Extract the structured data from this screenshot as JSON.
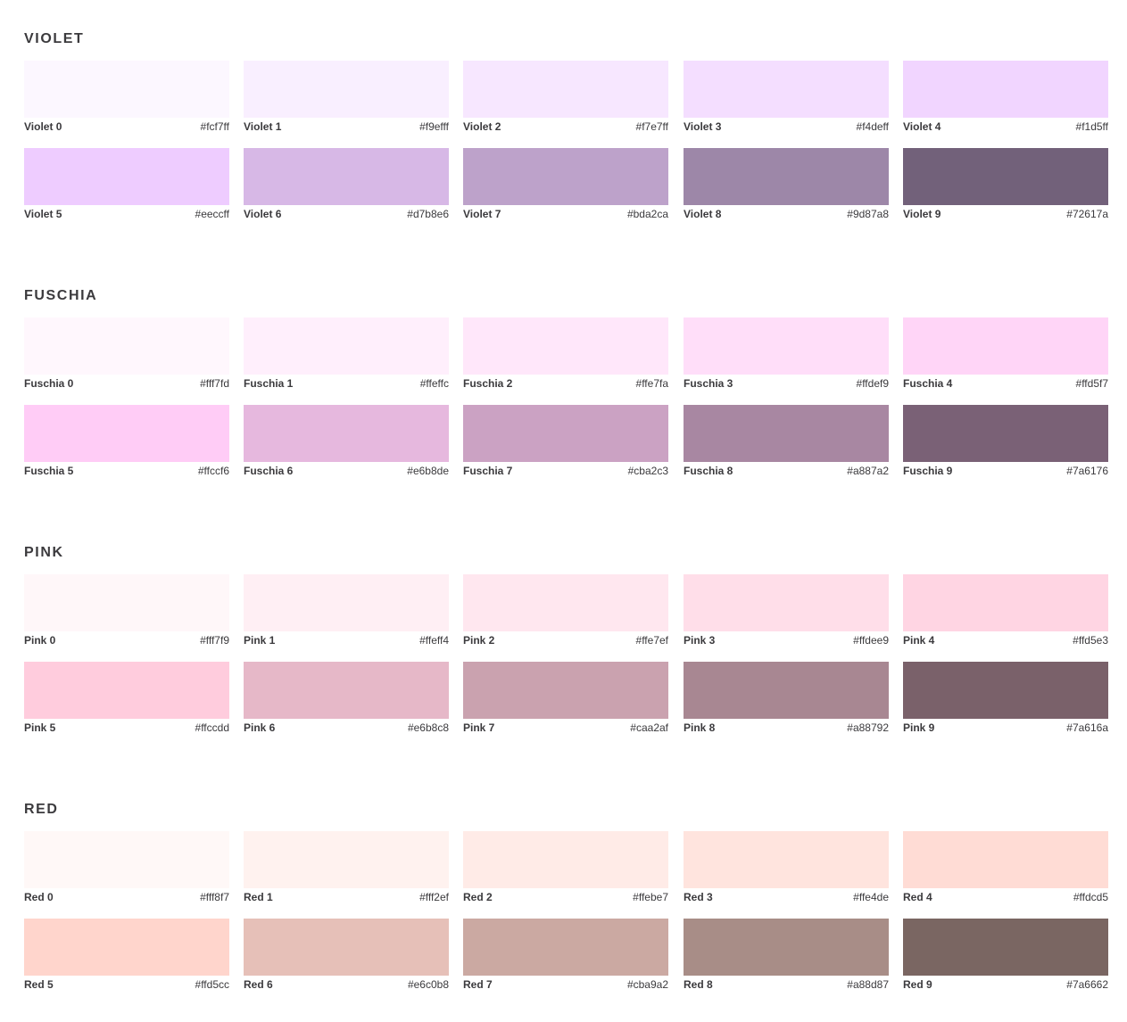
{
  "sections": [
    {
      "title": "VIOLET",
      "swatches": [
        {
          "name": "Violet 0",
          "hex": "#fcf7ff"
        },
        {
          "name": "Violet 1",
          "hex": "#f9efff"
        },
        {
          "name": "Violet 2",
          "hex": "#f7e7ff"
        },
        {
          "name": "Violet 3",
          "hex": "#f4deff"
        },
        {
          "name": "Violet 4",
          "hex": "#f1d5ff"
        },
        {
          "name": "Violet 5",
          "hex": "#eeccff"
        },
        {
          "name": "Violet 6",
          "hex": "#d7b8e6"
        },
        {
          "name": "Violet 7",
          "hex": "#bda2ca"
        },
        {
          "name": "Violet 8",
          "hex": "#9d87a8"
        },
        {
          "name": "Violet 9",
          "hex": "#72617a"
        }
      ]
    },
    {
      "title": "FUSCHIA",
      "swatches": [
        {
          "name": "Fuschia 0",
          "hex": "#fff7fd"
        },
        {
          "name": "Fuschia 1",
          "hex": "#ffeffc"
        },
        {
          "name": "Fuschia 2",
          "hex": "#ffe7fa"
        },
        {
          "name": "Fuschia 3",
          "hex": "#ffdef9"
        },
        {
          "name": "Fuschia 4",
          "hex": "#ffd5f7"
        },
        {
          "name": "Fuschia 5",
          "hex": "#ffccf6"
        },
        {
          "name": "Fuschia 6",
          "hex": "#e6b8de"
        },
        {
          "name": "Fuschia 7",
          "hex": "#cba2c3"
        },
        {
          "name": "Fuschia 8",
          "hex": "#a887a2"
        },
        {
          "name": "Fuschia 9",
          "hex": "#7a6176"
        }
      ]
    },
    {
      "title": "PINK",
      "swatches": [
        {
          "name": "Pink 0",
          "hex": "#fff7f9"
        },
        {
          "name": "Pink 1",
          "hex": "#ffeff4"
        },
        {
          "name": "Pink 2",
          "hex": "#ffe7ef"
        },
        {
          "name": "Pink 3",
          "hex": "#ffdee9"
        },
        {
          "name": "Pink 4",
          "hex": "#ffd5e3"
        },
        {
          "name": "Pink 5",
          "hex": "#ffccdd"
        },
        {
          "name": "Pink 6",
          "hex": "#e6b8c8"
        },
        {
          "name": "Pink 7",
          "hex": "#caa2af"
        },
        {
          "name": "Pink 8",
          "hex": "#a88792"
        },
        {
          "name": "Pink 9",
          "hex": "#7a616a"
        }
      ]
    },
    {
      "title": "RED",
      "swatches": [
        {
          "name": "Red 0",
          "hex": "#fff8f7"
        },
        {
          "name": "Red 1",
          "hex": "#fff2ef"
        },
        {
          "name": "Red 2",
          "hex": "#ffebe7"
        },
        {
          "name": "Red 3",
          "hex": "#ffe4de"
        },
        {
          "name": "Red 4",
          "hex": "#ffdcd5"
        },
        {
          "name": "Red 5",
          "hex": "#ffd5cc"
        },
        {
          "name": "Red 6",
          "hex": "#e6c0b8"
        },
        {
          "name": "Red 7",
          "hex": "#cba9a2"
        },
        {
          "name": "Red 8",
          "hex": "#a88d87"
        },
        {
          "name": "Red 9",
          "hex": "#7a6662"
        }
      ]
    }
  ]
}
